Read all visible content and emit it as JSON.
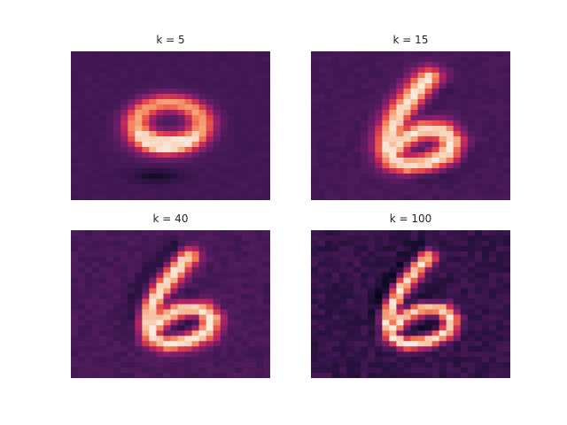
{
  "chart_data": [
    {
      "type": "heatmap",
      "title": "k = 5",
      "k": 5,
      "colormap": "rocket"
    },
    {
      "type": "heatmap",
      "title": "k = 15",
      "k": 15,
      "colormap": "rocket"
    },
    {
      "type": "heatmap",
      "title": "k = 40",
      "k": 40,
      "colormap": "rocket"
    },
    {
      "type": "heatmap",
      "title": "k = 100",
      "k": 100,
      "colormap": "rocket"
    }
  ]
}
